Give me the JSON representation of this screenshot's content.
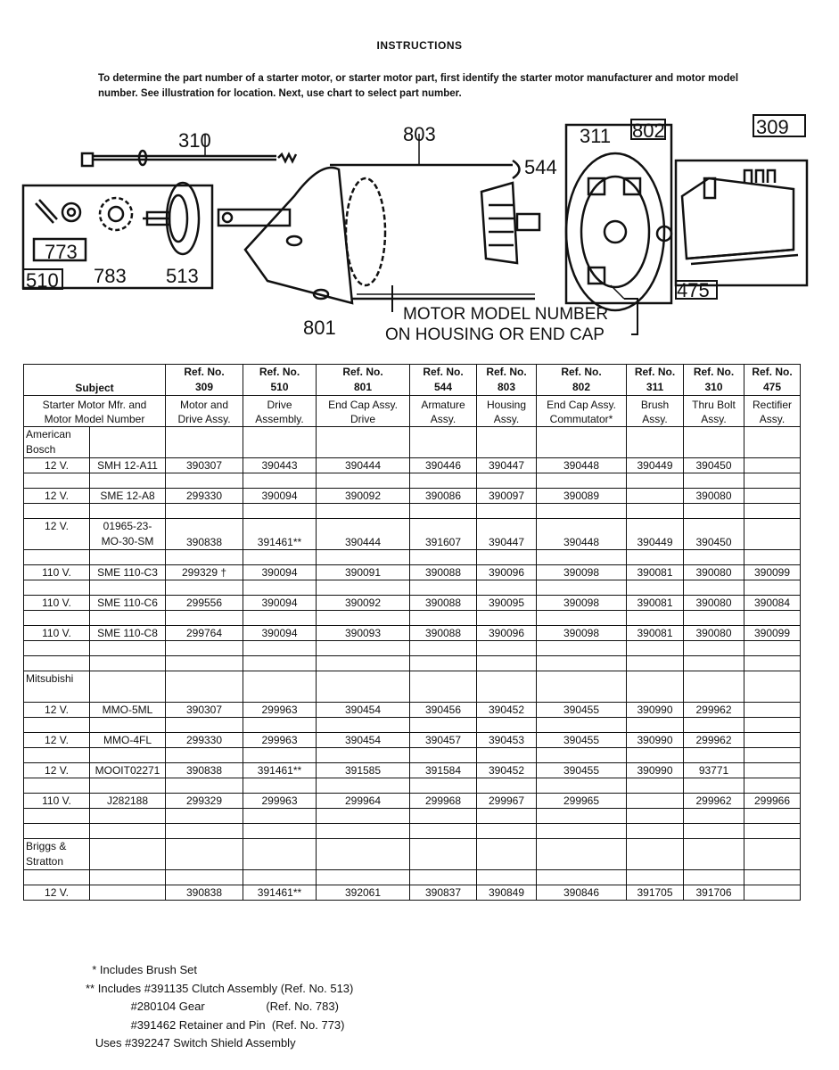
{
  "title": "INSTRUCTIONS",
  "intro": "To determine the part number of a starter motor, or starter motor part, first identify the starter motor manufacturer and motor model number. See illustration for location. Next, use chart to select part number.",
  "diagram": {
    "labels": {
      "l310": "310",
      "l803": "803",
      "l311": "311",
      "l802": "802",
      "l309": "309",
      "l544": "544",
      "l773": "773",
      "l783": "783",
      "l513": "513",
      "l510": "510",
      "l801": "801",
      "l475": "475"
    },
    "callout_line1": "MOTOR MODEL NUMBER",
    "callout_line2": "ON HOUSING OR END CAP"
  },
  "table": {
    "subject_label": "Subject",
    "subject_sub": [
      "Starter Motor Mfr. and",
      "Motor Model Number"
    ],
    "columns": [
      {
        "ref": "Ref. No.",
        "num": "309",
        "desc": [
          "Motor and",
          "Drive Assy."
        ]
      },
      {
        "ref": "Ref. No.",
        "num": "510",
        "desc": [
          "Drive",
          "Assembly."
        ]
      },
      {
        "ref": "Ref. No.",
        "num": "801",
        "desc": [
          "End Cap Assy.",
          "Drive"
        ]
      },
      {
        "ref": "Ref. No.",
        "num": "544",
        "desc": [
          "Armature",
          "Assy."
        ]
      },
      {
        "ref": "Ref. No.",
        "num": "803",
        "desc": [
          "Housing",
          "Assy."
        ]
      },
      {
        "ref": "Ref. No.",
        "num": "802",
        "desc": [
          "End Cap Assy.",
          "Commutator*"
        ]
      },
      {
        "ref": "Ref. No.",
        "num": "311",
        "desc": [
          "Brush",
          "Assy."
        ]
      },
      {
        "ref": "Ref. No.",
        "num": "310",
        "desc": [
          "Thru Bolt",
          "Assy."
        ]
      },
      {
        "ref": "Ref. No.",
        "num": "475",
        "desc": [
          "Rectifier",
          "Assy."
        ]
      }
    ],
    "rows": [
      {
        "type": "group",
        "name": "American Bosch"
      },
      {
        "type": "data",
        "volt": "12 V.",
        "model": "SMH 12-A11",
        "values": [
          "390307",
          "390443",
          "390444",
          "390446",
          "390447",
          "390448",
          "390449",
          "390450",
          ""
        ]
      },
      {
        "type": "spacer"
      },
      {
        "type": "data",
        "volt": "12 V.",
        "model": "SME 12-A8",
        "values": [
          "299330",
          "390094",
          "390092",
          "390086",
          "390097",
          "390089",
          "",
          "390080",
          ""
        ]
      },
      {
        "type": "spacer"
      },
      {
        "type": "tall",
        "volt": "12 V.",
        "model": "01965-23- MO-30-SM",
        "values": [
          "390838",
          "391461**",
          "390444",
          "391607",
          "390447",
          "390448",
          "390449",
          "390450",
          ""
        ]
      },
      {
        "type": "spacer"
      },
      {
        "type": "data",
        "volt": "110 V.",
        "model": "SME 110-C3",
        "values": [
          "299329 †",
          "390094",
          "390091",
          "390088",
          "390096",
          "390098",
          "390081",
          "390080",
          "390099"
        ]
      },
      {
        "type": "spacer"
      },
      {
        "type": "data",
        "volt": "110 V.",
        "model": "SME 110-C6",
        "values": [
          "299556",
          "390094",
          "390092",
          "390088",
          "390095",
          "390098",
          "390081",
          "390080",
          "390084"
        ]
      },
      {
        "type": "spacer"
      },
      {
        "type": "data",
        "volt": "110 V.",
        "model": "SME 110-C8",
        "values": [
          "299764",
          "390094",
          "390093",
          "390088",
          "390096",
          "390098",
          "390081",
          "390080",
          "390099"
        ]
      },
      {
        "type": "spacer"
      },
      {
        "type": "spacer"
      },
      {
        "type": "group",
        "name": "Mitsubishi"
      },
      {
        "type": "data",
        "volt": "12 V.",
        "model": "MMO-5ML",
        "values": [
          "390307",
          "299963",
          "390454",
          "390456",
          "390452",
          "390455",
          "390990",
          "299962",
          ""
        ]
      },
      {
        "type": "spacer"
      },
      {
        "type": "data",
        "volt": "12 V.",
        "model": "MMO-4FL",
        "values": [
          "299330",
          "299963",
          "390454",
          "390457",
          "390453",
          "390455",
          "390990",
          "299962",
          ""
        ]
      },
      {
        "type": "spacer"
      },
      {
        "type": "data",
        "volt": "12 V.",
        "model": "MOOIT02271",
        "values": [
          "390838",
          "391461**",
          "391585",
          "391584",
          "390452",
          "390455",
          "390990",
          "93771",
          ""
        ]
      },
      {
        "type": "spacer"
      },
      {
        "type": "data",
        "volt": "110 V.",
        "model": "J282188",
        "values": [
          "299329",
          "299963",
          "299964",
          "299968",
          "299967",
          "299965",
          "",
          "299962",
          "299966"
        ]
      },
      {
        "type": "spacer"
      },
      {
        "type": "spacer"
      },
      {
        "type": "group",
        "name": "Briggs & Stratton"
      },
      {
        "type": "spacer"
      },
      {
        "type": "data",
        "volt": "12 V.",
        "model": "",
        "values": [
          "390838",
          "391461**",
          "392061",
          "390837",
          "390849",
          "390846",
          "391705",
          "391706",
          ""
        ]
      }
    ]
  },
  "notes": [
    "  * Includes Brush Set",
    "** Includes #391135 Clutch Assembly (Ref. No. 513)",
    "              #280104 Gear                   (Ref. No. 783)",
    "              #391462 Retainer and Pin  (Ref. No. 773)",
    "   Uses #392247 Switch Shield Assembly"
  ]
}
